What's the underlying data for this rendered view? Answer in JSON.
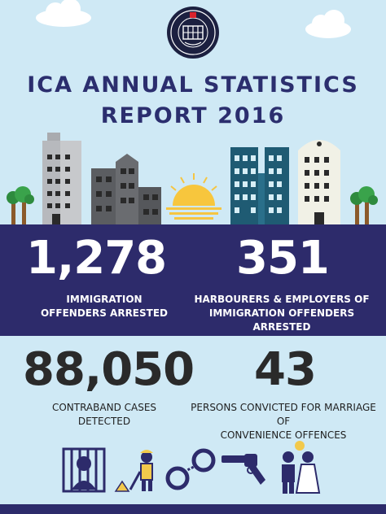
{
  "title": {
    "line1": "ICA ANNUAL STATISTICS",
    "line2": "REPORT 2016"
  },
  "logo": {
    "icon": "ica-crest-icon"
  },
  "stats": [
    {
      "value": "1,278",
      "label_line1": "IMMIGRATION",
      "label_line2": "OFFENDERS ARRESTED"
    },
    {
      "value": "351",
      "label_line1": "HARBOURERS & EMPLOYERS OF",
      "label_line2": "IMMIGRATION OFFENDERS ARRESTED"
    },
    {
      "value": "88,050",
      "label_line1": "CONTRABAND CASES",
      "label_line2": "DETECTED"
    },
    {
      "value": "43",
      "label_line1": "PERSONS CONVICTED FOR MARRIAGE OF",
      "label_line2": "CONVENIENCE OFFENCES"
    }
  ],
  "icons": [
    "prisoner-icon",
    "worker-icon",
    "handcuffs-icon",
    "revolver-icon",
    "bride-groom-icon"
  ],
  "colors": {
    "sky": "#cfe9f5",
    "band": "#2d2b6b",
    "title": "#2b2e6e",
    "sun": "#f5c542"
  }
}
